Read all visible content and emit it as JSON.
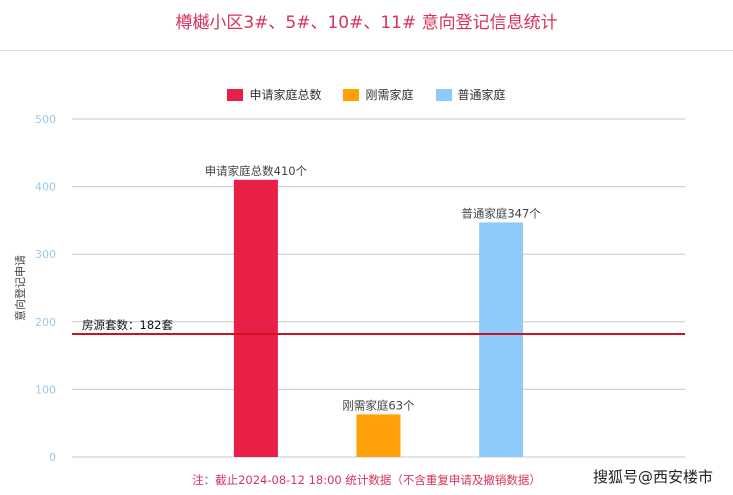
{
  "chart_data": {
    "type": "bar",
    "title": "樽樾小区3#、5#、10#、11# 意向登记信息统计",
    "ylabel": "意向登记申请",
    "ylim": [
      0,
      500
    ],
    "yticks": [
      0,
      100,
      200,
      300,
      400,
      500
    ],
    "grid": true,
    "legend_position": "top",
    "categories": [
      "",
      "申请家庭总数",
      "刚需家庭",
      "普通家庭",
      ""
    ],
    "series": [
      {
        "name": "申请家庭总数",
        "color": "#e81f47",
        "values": [
          null,
          410,
          null,
          null,
          null
        ],
        "label": "申请家庭总数410个"
      },
      {
        "name": "刚需家庭",
        "color": "#ff9f0a",
        "values": [
          null,
          null,
          63,
          null,
          null
        ],
        "label": "刚需家庭63个"
      },
      {
        "name": "普通家庭",
        "color": "#8ecafa",
        "values": [
          null,
          null,
          null,
          347,
          null
        ],
        "label": "普通家庭347个"
      }
    ],
    "reference_line": {
      "value": 182,
      "label": "房源套数：182套",
      "color": "#cc1122"
    },
    "note": "注：截止2024-08-12 18:00 统计数据（不含重复申请及撤销数据）"
  },
  "watermark": "搜狐号@西安楼市"
}
